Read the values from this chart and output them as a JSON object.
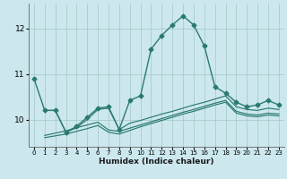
{
  "title": "",
  "xlabel": "Humidex (Indice chaleur)",
  "background_color": "#cce8ee",
  "grid_color": "#aacccc",
  "line_color": "#2a7a70",
  "xlim": [
    -0.5,
    23.5
  ],
  "ylim": [
    9.4,
    12.55
  ],
  "yticks": [
    10,
    11,
    12
  ],
  "xticks": [
    0,
    1,
    2,
    3,
    4,
    5,
    6,
    7,
    8,
    9,
    10,
    11,
    12,
    13,
    14,
    15,
    16,
    17,
    18,
    19,
    20,
    21,
    22,
    23
  ],
  "series_main": {
    "x": [
      0,
      1,
      2,
      3,
      4,
      5,
      6,
      7,
      8,
      9,
      10,
      11,
      12,
      13,
      14,
      15,
      16,
      17,
      18,
      19,
      20,
      21,
      22,
      23
    ],
    "y": [
      10.9,
      10.2,
      10.2,
      9.72,
      9.85,
      10.05,
      10.25,
      10.28,
      9.78,
      10.42,
      10.52,
      11.55,
      11.85,
      12.08,
      12.28,
      12.08,
      11.62,
      10.72,
      10.58,
      10.38,
      10.28,
      10.32,
      10.42,
      10.32
    ]
  },
  "series_lines": [
    {
      "x": [
        1,
        2,
        3,
        4,
        5,
        6,
        7,
        8,
        9,
        10,
        11,
        12,
        13,
        14,
        15,
        16,
        17,
        18,
        19,
        20,
        21,
        22,
        23
      ],
      "y": [
        10.2,
        10.2,
        9.72,
        9.82,
        10.0,
        10.22,
        10.25,
        9.78,
        9.92,
        9.98,
        10.05,
        10.12,
        10.18,
        10.25,
        10.32,
        10.38,
        10.45,
        10.52,
        10.28,
        10.22,
        10.2,
        10.25,
        10.22
      ]
    },
    {
      "x": [
        1,
        3,
        4,
        5,
        6,
        7,
        8,
        9,
        10,
        11,
        12,
        13,
        14,
        15,
        16,
        17,
        18,
        19,
        20,
        21,
        22,
        23
      ],
      "y": [
        9.65,
        9.75,
        9.82,
        9.88,
        9.94,
        9.77,
        9.74,
        9.81,
        9.88,
        9.95,
        10.02,
        10.09,
        10.16,
        10.22,
        10.29,
        10.36,
        10.42,
        10.18,
        10.12,
        10.1,
        10.14,
        10.12
      ]
    },
    {
      "x": [
        1,
        3,
        4,
        5,
        6,
        7,
        8,
        9,
        10,
        11,
        12,
        13,
        14,
        15,
        16,
        17,
        18,
        19,
        20,
        21,
        22,
        23
      ],
      "y": [
        9.6,
        9.68,
        9.74,
        9.8,
        9.87,
        9.72,
        9.68,
        9.76,
        9.84,
        9.91,
        9.98,
        10.05,
        10.12,
        10.18,
        10.25,
        10.32,
        10.38,
        10.14,
        10.08,
        10.06,
        10.1,
        10.08
      ]
    }
  ],
  "marker": "D",
  "markersize": 2.5,
  "linewidth": 1.0
}
